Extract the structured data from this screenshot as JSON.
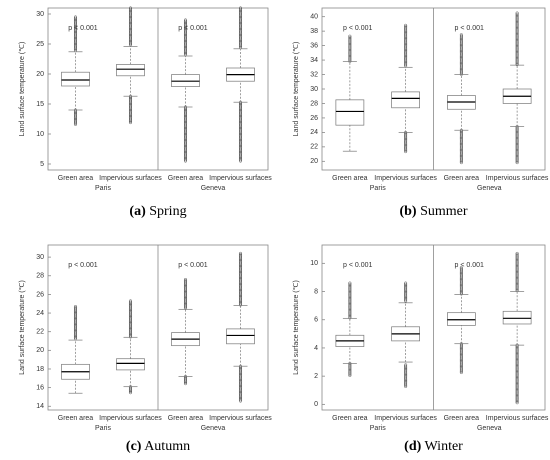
{
  "chart_data": [
    {
      "type": "box",
      "caption_label": "(a)",
      "caption": "Spring",
      "ylabel": "Land surface temperature (℃)",
      "categories": [
        "Green area",
        "Impervious surfaces",
        "Green area",
        "Impervious surfaces"
      ],
      "groups": [
        "Paris",
        "Geneva"
      ],
      "annotations": [
        "p < 0.001",
        "p < 0.001"
      ],
      "ylim": [
        4,
        31
      ],
      "yticks": [
        5,
        10,
        15,
        20,
        25,
        30
      ],
      "boxes": [
        {
          "whisker_low": 14,
          "q1": 18,
          "median": 19,
          "q3": 20.3,
          "whisker_high": 23.7,
          "outliers": [
            [
              11.5,
              14
            ],
            [
              23.7,
              29.5
            ]
          ]
        },
        {
          "whisker_low": 16.3,
          "q1": 19.7,
          "median": 20.8,
          "q3": 21.6,
          "whisker_high": 24.6,
          "outliers": [
            [
              11.8,
              16.3
            ],
            [
              24.6,
              31
            ]
          ]
        },
        {
          "whisker_low": 14.5,
          "q1": 17.9,
          "median": 18.8,
          "q3": 19.9,
          "whisker_high": 23,
          "outliers": [
            [
              5.5,
              14.5
            ],
            [
              23,
              29
            ]
          ]
        },
        {
          "whisker_low": 15.3,
          "q1": 18.8,
          "median": 19.9,
          "q3": 21,
          "whisker_high": 24.2,
          "outliers": [
            [
              5.5,
              15.3
            ],
            [
              24.2,
              31
            ]
          ]
        }
      ]
    },
    {
      "type": "box",
      "caption_label": "(b)",
      "caption": "Summer",
      "ylabel": "Land surface temperature (℃)",
      "categories": [
        "Green area",
        "Impervious surfaces",
        "Green area",
        "Impervious surfaces"
      ],
      "groups": [
        "Paris",
        "Geneva"
      ],
      "annotations": [
        "p < 0.001",
        "p < 0.001"
      ],
      "ylim": [
        18.8,
        41.2
      ],
      "yticks": [
        20,
        22,
        24,
        26,
        28,
        30,
        32,
        34,
        36,
        38,
        40
      ],
      "boxes": [
        {
          "whisker_low": 21.4,
          "q1": 25,
          "median": 26.9,
          "q3": 28.5,
          "whisker_high": 33.8,
          "outliers": [
            [
              33.8,
              37.3
            ]
          ]
        },
        {
          "whisker_low": 24,
          "q1": 27.4,
          "median": 28.7,
          "q3": 29.6,
          "whisker_high": 33,
          "outliers": [
            [
              21.3,
              24
            ],
            [
              33,
              38.8
            ]
          ]
        },
        {
          "whisker_low": 24.3,
          "q1": 27.2,
          "median": 28.2,
          "q3": 29.1,
          "whisker_high": 32,
          "outliers": [
            [
              19.8,
              24.3
            ],
            [
              32,
              37.5
            ]
          ]
        },
        {
          "whisker_low": 24.8,
          "q1": 28,
          "median": 29,
          "q3": 30,
          "whisker_high": 33.3,
          "outliers": [
            [
              19.8,
              24.8
            ],
            [
              33.3,
              40.5
            ]
          ]
        }
      ]
    },
    {
      "type": "box",
      "caption_label": "(c)",
      "caption": "Autumn",
      "ylabel": "Land surface temperature (℃)",
      "categories": [
        "Green area",
        "Impervious surfaces",
        "Green area",
        "Impervious surfaces"
      ],
      "groups": [
        "Paris",
        "Geneva"
      ],
      "annotations": [
        "p < 0.001",
        "p < 0.001"
      ],
      "ylim": [
        13.6,
        31.3
      ],
      "yticks": [
        14,
        16,
        18,
        20,
        22,
        24,
        26,
        28,
        30
      ],
      "boxes": [
        {
          "whisker_low": 15.4,
          "q1": 16.9,
          "median": 17.7,
          "q3": 18.5,
          "whisker_high": 21.1,
          "outliers": [
            [
              21.1,
              24.7
            ]
          ]
        },
        {
          "whisker_low": 16.1,
          "q1": 17.9,
          "median": 18.6,
          "q3": 19.1,
          "whisker_high": 21.4,
          "outliers": [
            [
              15.4,
              16.1
            ],
            [
              21.4,
              25.3
            ]
          ]
        },
        {
          "whisker_low": 17.2,
          "q1": 20.5,
          "median": 21.2,
          "q3": 21.9,
          "whisker_high": 24.4,
          "outliers": [
            [
              16.4,
              17.2
            ],
            [
              24.4,
              27.6
            ]
          ]
        },
        {
          "whisker_low": 18.3,
          "q1": 20.7,
          "median": 21.6,
          "q3": 22.3,
          "whisker_high": 24.8,
          "outliers": [
            [
              14.5,
              18.3
            ],
            [
              24.8,
              30.4
            ]
          ]
        }
      ]
    },
    {
      "type": "box",
      "caption_label": "(d)",
      "caption": "Winter",
      "ylabel": "Land surface temperature (℃)",
      "categories": [
        "Green area",
        "Impervious surfaces",
        "Green area",
        "Impervious surfaces"
      ],
      "groups": [
        "Paris",
        "Geneva"
      ],
      "annotations": [
        "p < 0.001",
        "p < 0.001"
      ],
      "ylim": [
        -0.4,
        11.3
      ],
      "yticks": [
        0,
        2,
        4,
        6,
        8,
        10
      ],
      "boxes": [
        {
          "whisker_low": 2.9,
          "q1": 4.1,
          "median": 4.5,
          "q3": 4.9,
          "whisker_high": 6.1,
          "outliers": [
            [
              2,
              2.9
            ],
            [
              6.1,
              8.6
            ]
          ]
        },
        {
          "whisker_low": 3,
          "q1": 4.5,
          "median": 5,
          "q3": 5.5,
          "whisker_high": 7.2,
          "outliers": [
            [
              1.2,
              2.8
            ],
            [
              7.3,
              8.6
            ]
          ]
        },
        {
          "whisker_low": 4.3,
          "q1": 5.6,
          "median": 6,
          "q3": 6.5,
          "whisker_high": 7.8,
          "outliers": [
            [
              2.2,
              4.3
            ],
            [
              7.8,
              9.7
            ]
          ]
        },
        {
          "whisker_low": 4.2,
          "q1": 5.7,
          "median": 6.1,
          "q3": 6.6,
          "whisker_high": 8,
          "outliers": [
            [
              0.1,
              4.2
            ],
            [
              8,
              10.7
            ]
          ]
        }
      ]
    }
  ]
}
